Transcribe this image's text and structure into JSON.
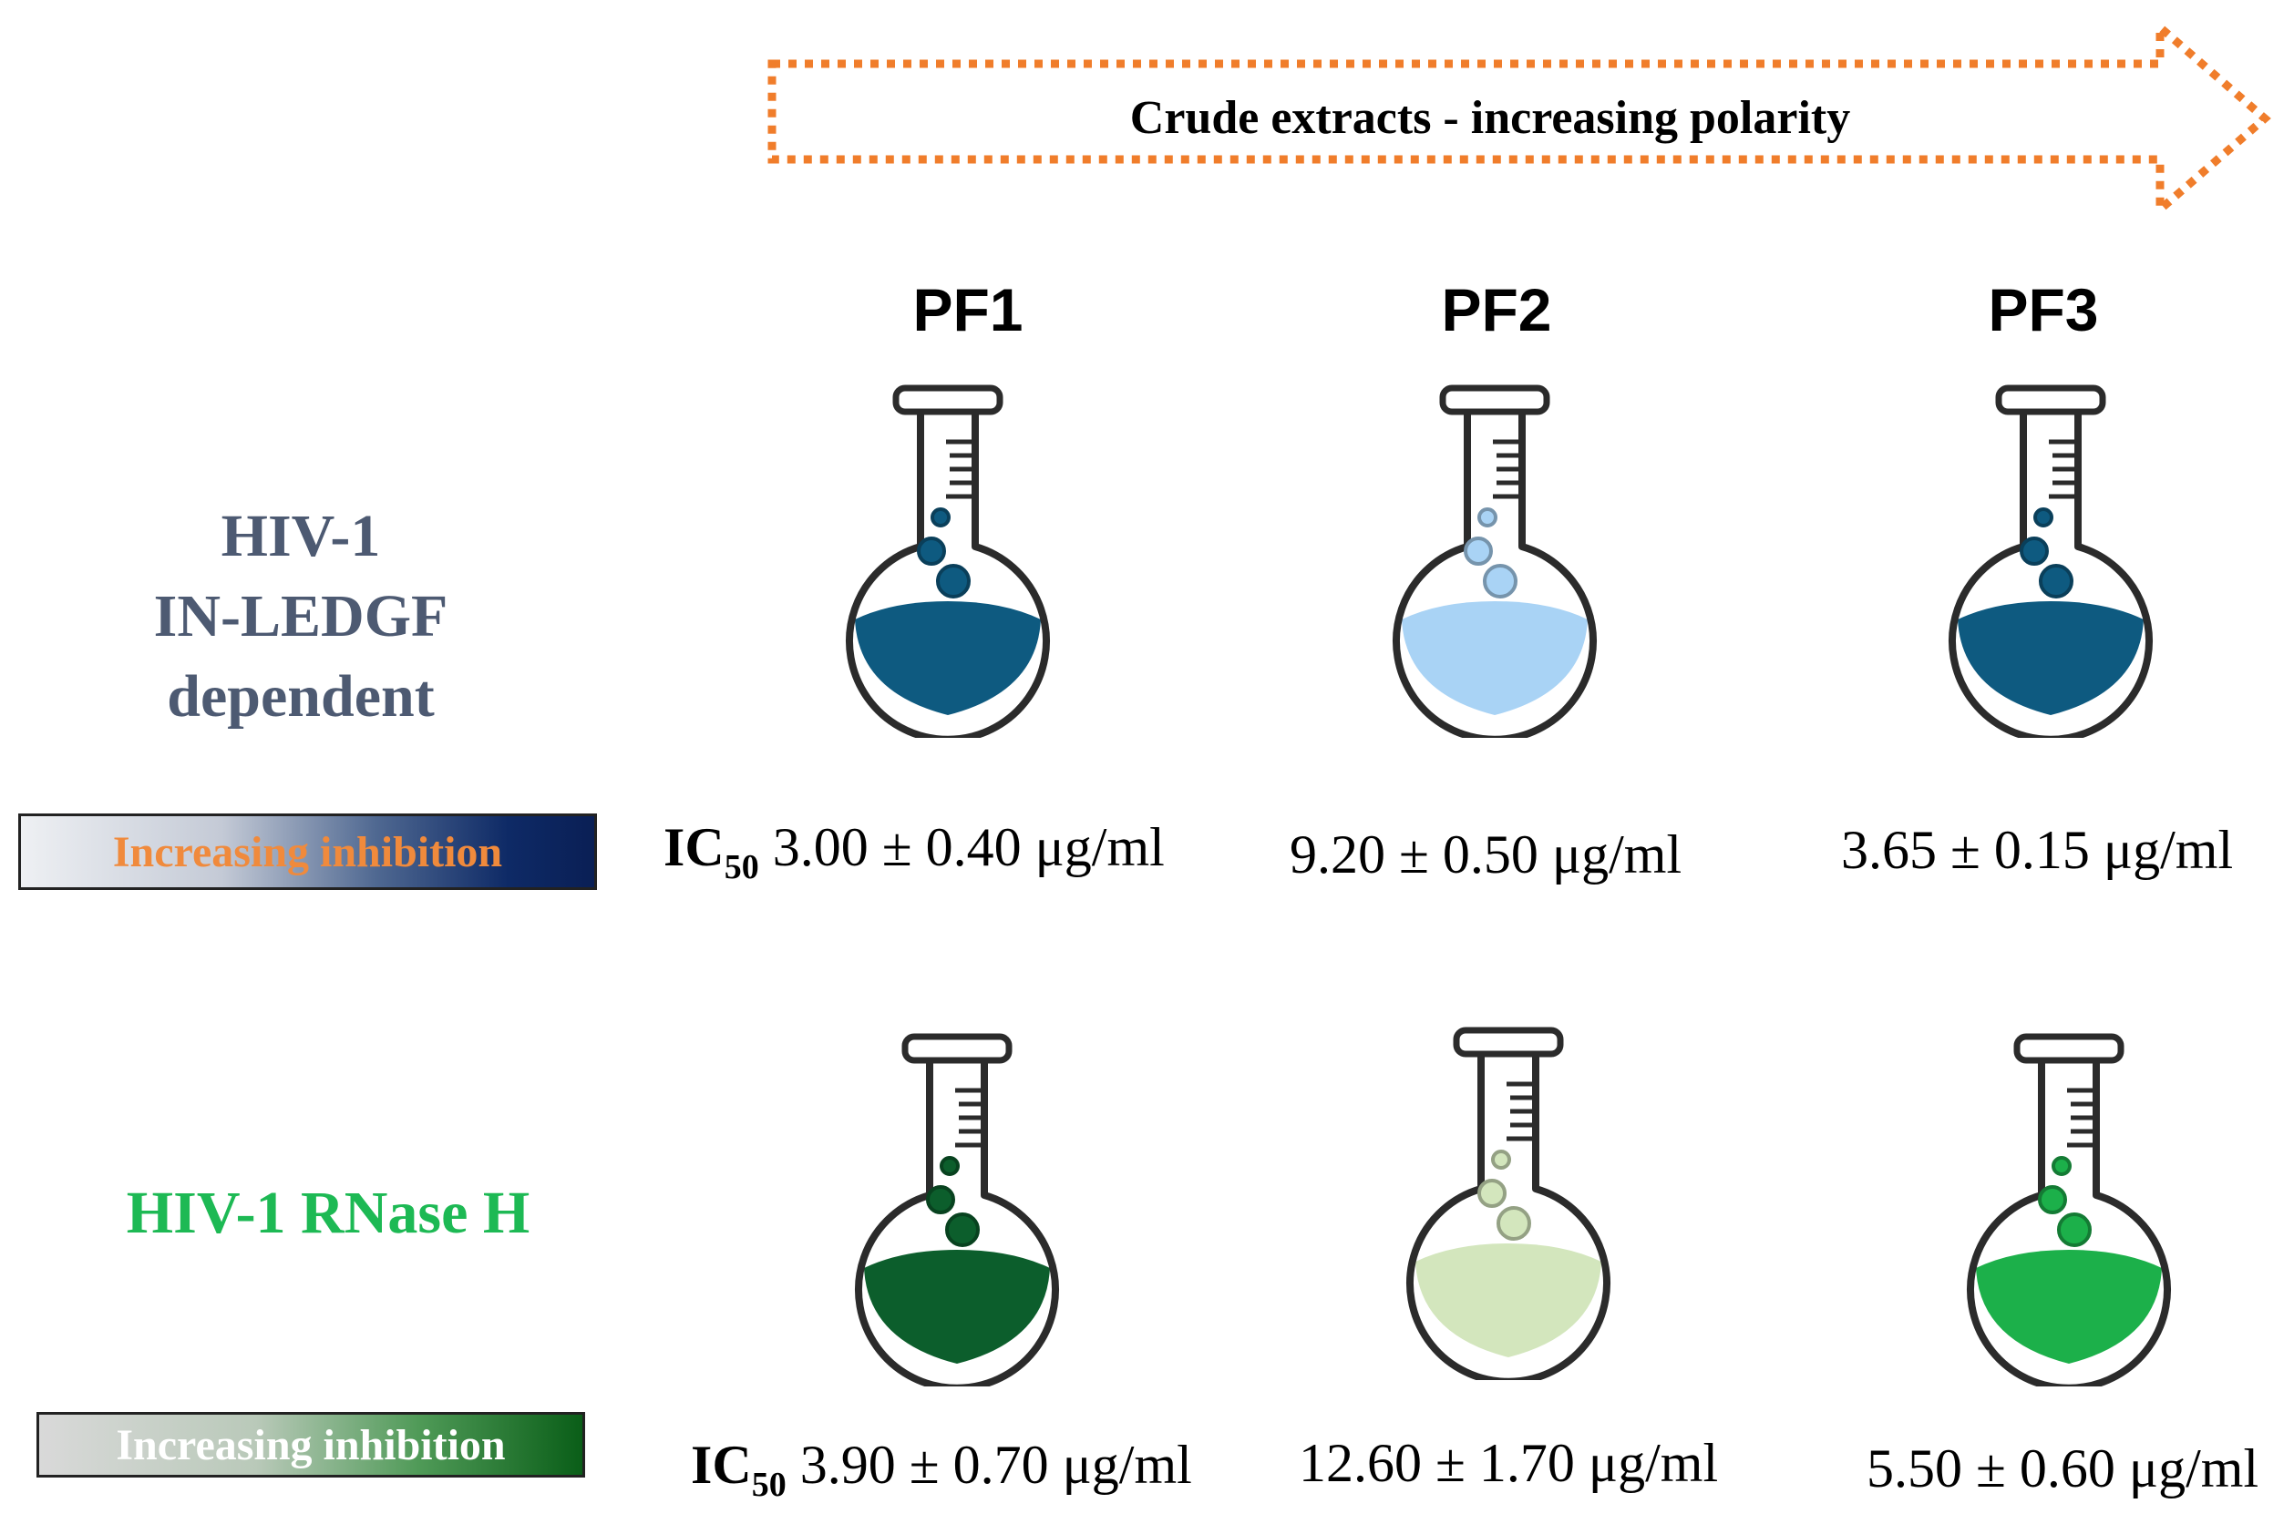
{
  "header_arrow": {
    "label": "Crude extracts - increasing polarity",
    "color": "#f07d2b"
  },
  "columns": [
    {
      "label": "PF1"
    },
    {
      "label": "PF2"
    },
    {
      "label": "PF3"
    }
  ],
  "rows": [
    {
      "label": "HIV-1 IN-LEDGF dependent",
      "label_lines": [
        "HIV-1",
        "IN-LEDGF",
        "dependent"
      ],
      "label_color": "#4d5a72",
      "inhibition_bar": "Increasing inhibition",
      "ic_prefix": "IC",
      "ic_sub": "50",
      "values": [
        "3.00 ± 0.40 μg/ml",
        "9.20 ± 0.50 μg/ml",
        "3.65 ± 0.15 μg/ml"
      ],
      "liquid_colors": [
        "#0e5a80",
        "#a9d3f5",
        "#0e5a80"
      ]
    },
    {
      "label": "HIV-1 RNase H",
      "label_color": "#1db954",
      "inhibition_bar": "Increasing inhibition",
      "ic_prefix": "IC",
      "ic_sub": "50",
      "values": [
        "3.90 ± 0.70 μg/ml",
        "12.60 ± 1.70 μg/ml",
        "5.50 ± 0.60 μg/ml"
      ],
      "liquid_colors": [
        "#0c5e2c",
        "#d3e6bd",
        "#1cb04a"
      ]
    }
  ]
}
